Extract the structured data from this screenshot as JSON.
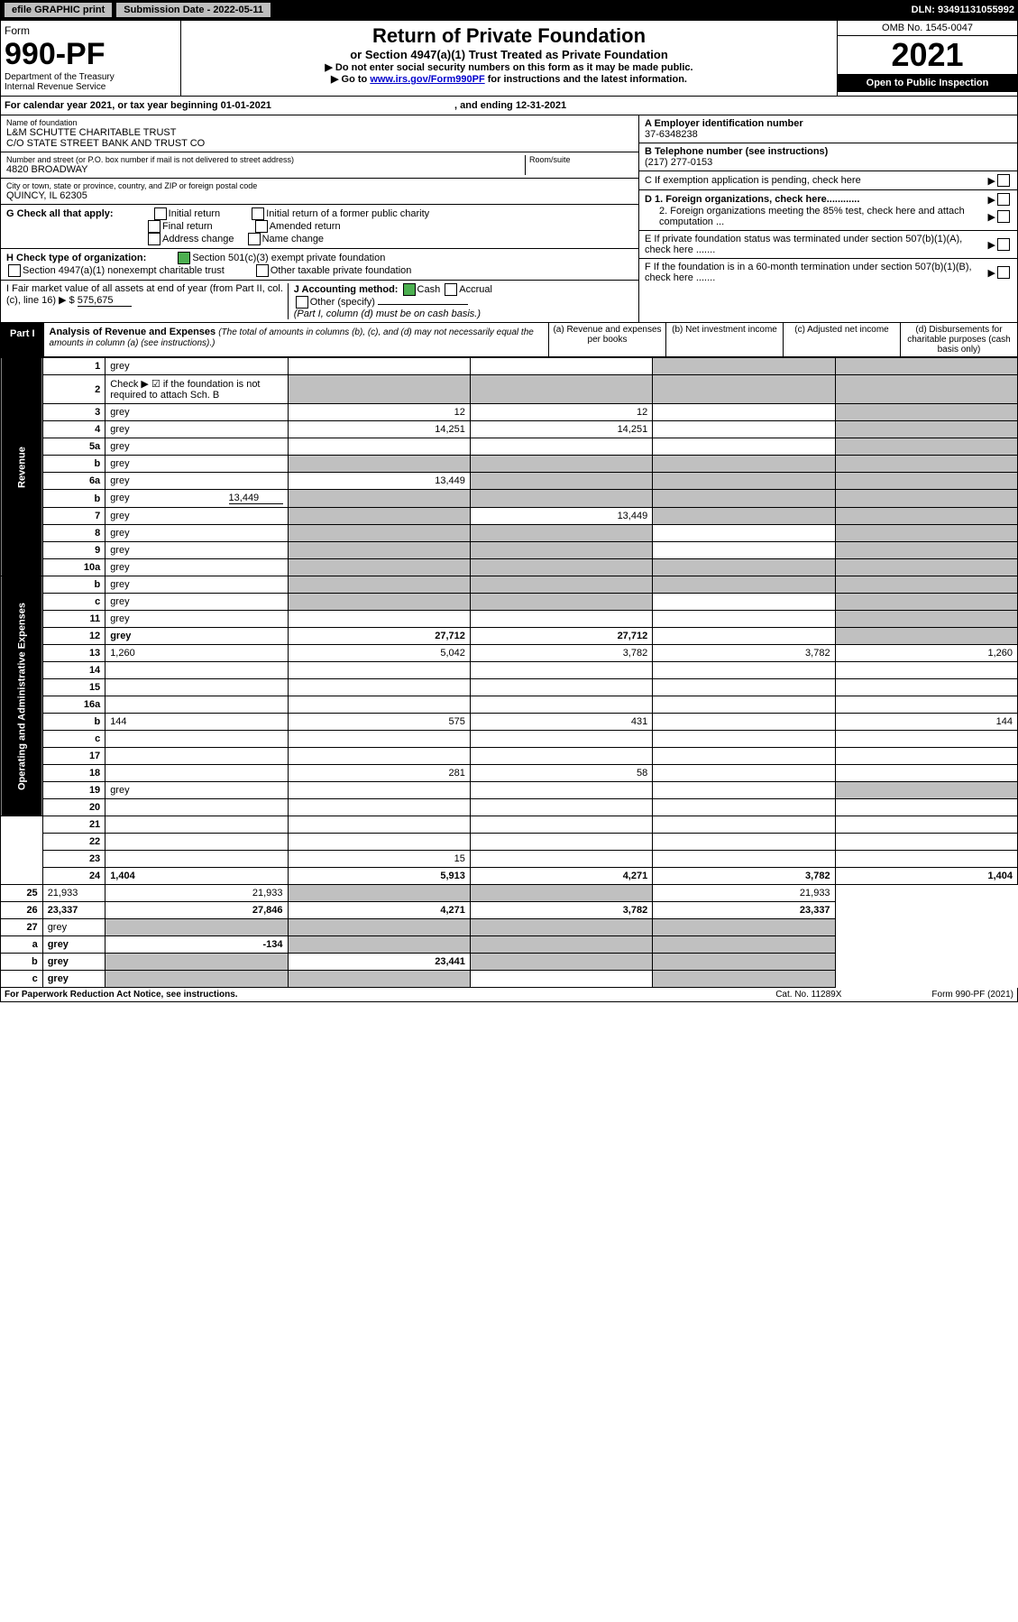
{
  "header_bar": {
    "efile_btn": "efile GRAPHIC print",
    "submission_label": "Submission Date - 2022-05-11",
    "dln": "DLN: 93491131055992"
  },
  "form_header": {
    "form_label": "Form",
    "form_number": "990-PF",
    "dept1": "Department of the Treasury",
    "dept2": "Internal Revenue Service",
    "title": "Return of Private Foundation",
    "subtitle": "or Section 4947(a)(1) Trust Treated as Private Foundation",
    "instr1": "▶ Do not enter social security numbers on this form as it may be made public.",
    "instr2_pre": "▶ Go to ",
    "instr2_link": "www.irs.gov/Form990PF",
    "instr2_post": " for instructions and the latest information.",
    "omb": "OMB No. 1545-0047",
    "year": "2021",
    "open": "Open to Public Inspection"
  },
  "cal_year": {
    "text_pre": "For calendar year 2021, or tax year beginning ",
    "begin": "01-01-2021",
    "text_mid": " , and ending ",
    "end": "12-31-2021"
  },
  "identity": {
    "name_label": "Name of foundation",
    "name1": "L&M SCHUTTE CHARITABLE TRUST",
    "name2": "C/O STATE STREET BANK AND TRUST CO",
    "addr_label": "Number and street (or P.O. box number if mail is not delivered to street address)",
    "addr": "4820 BROADWAY",
    "room_label": "Room/suite",
    "city_label": "City or town, state or province, country, and ZIP or foreign postal code",
    "city": "QUINCY, IL  62305",
    "ein_label": "A Employer identification number",
    "ein": "37-6348238",
    "phone_label": "B Telephone number (see instructions)",
    "phone": "(217) 277-0153",
    "c_label": "C If exemption application is pending, check here",
    "d1_label": "D 1. Foreign organizations, check here............",
    "d2_label": "2. Foreign organizations meeting the 85% test, check here and attach computation ...",
    "e_label": "E  If private foundation status was terminated under section 507(b)(1)(A), check here .......",
    "f_label": "F  If the foundation is in a 60-month termination under section 507(b)(1)(B), check here .......",
    "g_label": "G Check all that apply:",
    "g_opts": [
      "Initial return",
      "Initial return of a former public charity",
      "Final return",
      "Amended return",
      "Address change",
      "Name change"
    ],
    "h_label": "H Check type of organization:",
    "h_opt1": "Section 501(c)(3) exempt private foundation",
    "h_opt2": "Section 4947(a)(1) nonexempt charitable trust",
    "h_opt3": "Other taxable private foundation",
    "i_label": "I Fair market value of all assets at end of year (from Part II, col. (c), line 16) ▶ $",
    "i_value": "575,675",
    "j_label": "J Accounting method:",
    "j_cash": "Cash",
    "j_accrual": "Accrual",
    "j_other": "Other (specify)",
    "j_note": "(Part I, column (d) must be on cash basis.)"
  },
  "part1": {
    "label": "Part I",
    "title": "Analysis of Revenue and Expenses",
    "note": "(The total of amounts in columns (b), (c), and (d) may not necessarily equal the amounts in column (a) (see instructions).)",
    "col_a": "(a) Revenue and expenses per books",
    "col_b": "(b) Net investment income",
    "col_c": "(c) Adjusted net income",
    "col_d": "(d) Disbursements for charitable purposes (cash basis only)"
  },
  "sections": {
    "revenue": "Revenue",
    "expenses": "Operating and Administrative Expenses"
  },
  "rows": [
    {
      "n": "1",
      "d": "grey",
      "a": "",
      "b": "",
      "c": "grey"
    },
    {
      "n": "2",
      "d": "Check ▶ ☑ if the foundation is not required to attach Sch. B",
      "plain": true
    },
    {
      "n": "3",
      "d": "grey",
      "a": "12",
      "b": "12",
      "c": ""
    },
    {
      "n": "4",
      "d": "grey",
      "a": "14,251",
      "b": "14,251",
      "c": ""
    },
    {
      "n": "5a",
      "d": "grey",
      "a": "",
      "b": "",
      "c": ""
    },
    {
      "n": "b",
      "d": "grey",
      "a": "grey",
      "b": "grey",
      "c": "grey"
    },
    {
      "n": "6a",
      "d": "grey",
      "a": "13,449",
      "b": "grey",
      "c": "grey"
    },
    {
      "n": "b",
      "d": "grey",
      "inline": "13,449",
      "a": "grey",
      "b": "grey",
      "c": "grey"
    },
    {
      "n": "7",
      "d": "grey",
      "a": "grey",
      "b": "13,449",
      "c": "grey"
    },
    {
      "n": "8",
      "d": "grey",
      "a": "grey",
      "b": "grey",
      "c": ""
    },
    {
      "n": "9",
      "d": "grey",
      "a": "grey",
      "b": "grey",
      "c": ""
    },
    {
      "n": "10a",
      "d": "grey",
      "a": "grey",
      "b": "grey",
      "c": "grey"
    },
    {
      "n": "b",
      "d": "grey",
      "a": "grey",
      "b": "grey",
      "c": "grey"
    },
    {
      "n": "c",
      "d": "grey",
      "a": "grey",
      "b": "grey",
      "c": ""
    },
    {
      "n": "11",
      "d": "grey",
      "a": "",
      "b": "",
      "c": ""
    },
    {
      "n": "12",
      "d": "grey",
      "bold": true,
      "a": "27,712",
      "b": "27,712",
      "c": ""
    },
    {
      "n": "13",
      "d": "1,260",
      "a": "5,042",
      "b": "3,782",
      "c": "3,782"
    },
    {
      "n": "14",
      "d": "",
      "a": "",
      "b": "",
      "c": ""
    },
    {
      "n": "15",
      "d": "",
      "a": "",
      "b": "",
      "c": ""
    },
    {
      "n": "16a",
      "d": "",
      "a": "",
      "b": "",
      "c": ""
    },
    {
      "n": "b",
      "d": "144",
      "a": "575",
      "b": "431",
      "c": ""
    },
    {
      "n": "c",
      "d": "",
      "a": "",
      "b": "",
      "c": ""
    },
    {
      "n": "17",
      "d": "",
      "a": "",
      "b": "",
      "c": ""
    },
    {
      "n": "18",
      "d": "",
      "a": "281",
      "b": "58",
      "c": ""
    },
    {
      "n": "19",
      "d": "grey",
      "a": "",
      "b": "",
      "c": ""
    },
    {
      "n": "20",
      "d": "",
      "a": "",
      "b": "",
      "c": ""
    },
    {
      "n": "21",
      "d": "",
      "a": "",
      "b": "",
      "c": ""
    },
    {
      "n": "22",
      "d": "",
      "a": "",
      "b": "",
      "c": ""
    },
    {
      "n": "23",
      "d": "",
      "a": "15",
      "b": "",
      "c": ""
    },
    {
      "n": "24",
      "d": "1,404",
      "bold": true,
      "a": "5,913",
      "b": "4,271",
      "c": "3,782"
    },
    {
      "n": "25",
      "d": "21,933",
      "a": "21,933",
      "b": "grey",
      "c": "grey"
    },
    {
      "n": "26",
      "d": "23,337",
      "bold": true,
      "a": "27,846",
      "b": "4,271",
      "c": "3,782"
    },
    {
      "n": "27",
      "d": "grey",
      "a": "grey",
      "b": "grey",
      "c": "grey"
    },
    {
      "n": "a",
      "d": "grey",
      "bold": true,
      "a": "-134",
      "b": "grey",
      "c": "grey"
    },
    {
      "n": "b",
      "d": "grey",
      "bold": true,
      "a": "grey",
      "b": "23,441",
      "c": "grey"
    },
    {
      "n": "c",
      "d": "grey",
      "bold": true,
      "a": "grey",
      "b": "grey",
      "c": ""
    }
  ],
  "footer": {
    "left": "For Paperwork Reduction Act Notice, see instructions.",
    "mid": "Cat. No. 11289X",
    "right": "Form 990-PF (2021)"
  },
  "colors": {
    "link": "#0000cc",
    "grey": "#c0c0c0",
    "black": "#000000",
    "green": "#4caf50"
  }
}
